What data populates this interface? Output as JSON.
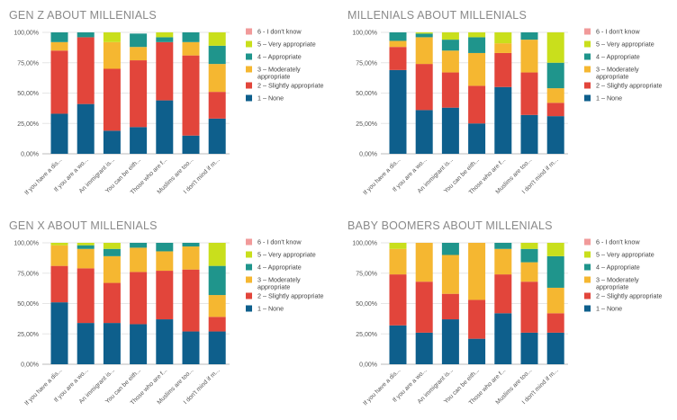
{
  "colors": {
    "1 – None": "#0e5f8c",
    "2 – Slightly appropriate": "#e2453b",
    "3 – Moderately appropriate": "#f5b731",
    "4 – Appropriate": "#1f958c",
    "5 – Very appropriate": "#c9df1c",
    "6 - I don't know": "#f19a9a"
  },
  "legend": [
    "6 - I don't know",
    "5 – Very appropriate",
    "4 – Appropriate",
    "3 – Moderately appropriate",
    "2 – Slightly appropriate",
    "1 – None"
  ],
  "chart_data": [
    {
      "type": "bar",
      "stacked": true,
      "title": "GEN Z ABOUT MILLENIALS",
      "categories": [
        "If you have a dis...",
        "If you are a wo...",
        "An immigrant is...",
        "You can be eith...",
        "Those who are f...",
        "Muslims are too...",
        "I don't mind if m..."
      ],
      "yticks": [
        "0,00%",
        "25,00%",
        "50,00%",
        "75,00%",
        "100,00%"
      ],
      "ylim": [
        0,
        100
      ],
      "series": [
        {
          "name": "1 – None",
          "values": [
            33,
            41,
            19,
            22,
            44,
            15,
            29
          ]
        },
        {
          "name": "2 – Slightly appropriate",
          "values": [
            52,
            55,
            51,
            55,
            48,
            66,
            22
          ]
        },
        {
          "name": "3 – Moderately appropriate",
          "values": [
            7,
            0,
            22,
            11,
            0,
            11,
            23
          ]
        },
        {
          "name": "4 – Appropriate",
          "values": [
            8,
            4,
            0,
            11,
            4,
            8,
            15
          ]
        },
        {
          "name": "5 – Very appropriate",
          "values": [
            0,
            0,
            8,
            0,
            4,
            0,
            11
          ]
        },
        {
          "name": "6 - I don't know",
          "values": [
            0,
            0,
            0,
            0,
            0,
            0,
            0
          ]
        }
      ]
    },
    {
      "type": "bar",
      "stacked": true,
      "title": "MILLENIALS ABOUT MILLENIALS",
      "categories": [
        "If you have a dis...",
        "If you are a wo...",
        "An immigrant is...",
        "You can be eith...",
        "Those who are f...",
        "Muslims are too...",
        "I don't mind if m..."
      ],
      "yticks": [
        "0,00%",
        "25,00%",
        "50,00%",
        "75,00%",
        "100,00%"
      ],
      "ylim": [
        0,
        100
      ],
      "series": [
        {
          "name": "1 – None",
          "values": [
            69,
            36,
            38,
            25,
            55,
            32,
            31
          ]
        },
        {
          "name": "2 – Slightly appropriate",
          "values": [
            19,
            38,
            29,
            31,
            28,
            35,
            11
          ]
        },
        {
          "name": "3 – Moderately appropriate",
          "values": [
            5,
            22,
            18,
            27,
            8,
            27,
            12
          ]
        },
        {
          "name": "4 – Appropriate",
          "values": [
            7,
            3,
            9,
            13,
            0,
            6,
            21
          ]
        },
        {
          "name": "5 – Very appropriate",
          "values": [
            0,
            1,
            6,
            4,
            9,
            0,
            25
          ]
        },
        {
          "name": "6 - I don't know",
          "values": [
            0,
            0,
            0,
            0,
            0,
            0,
            0
          ]
        }
      ]
    },
    {
      "type": "bar",
      "stacked": true,
      "title": "GEN X ABOUT MILLENIALS",
      "categories": [
        "If you have a dis...",
        "If you are a wo...",
        "An immigrant is...",
        "You can be eith...",
        "Those who are f...",
        "Muslims are too...",
        "I don't mind if m..."
      ],
      "yticks": [
        "0,00%",
        "25,00%",
        "50,00%",
        "75,00%",
        "100,00%"
      ],
      "ylim": [
        0,
        100
      ],
      "series": [
        {
          "name": "1 – None",
          "values": [
            51,
            34,
            34,
            33,
            37,
            27,
            27
          ]
        },
        {
          "name": "2 – Slightly appropriate",
          "values": [
            30,
            45,
            33,
            43,
            40,
            51,
            12
          ]
        },
        {
          "name": "3 – Moderately appropriate",
          "values": [
            17,
            16,
            22,
            20,
            16,
            19,
            18
          ]
        },
        {
          "name": "4 – Appropriate",
          "values": [
            0,
            3,
            6,
            4,
            7,
            3,
            24
          ]
        },
        {
          "name": "5 – Very appropriate",
          "values": [
            2,
            2,
            5,
            0,
            0,
            0,
            19
          ]
        },
        {
          "name": "6 - I don't know",
          "values": [
            0,
            0,
            0,
            0,
            0,
            0,
            0
          ]
        }
      ]
    },
    {
      "type": "bar",
      "stacked": true,
      "title": "BABY BOOMERS ABOUT MILLENIALS",
      "categories": [
        "If you have a dis...",
        "If you are a wo...",
        "An immigrant is...",
        "You can be eith...",
        "Those who are f...",
        "Muslims are too...",
        "I don't mind if m..."
      ],
      "yticks": [
        "0,00%",
        "25,00%",
        "50,00%",
        "75,00%",
        "100,00%"
      ],
      "ylim": [
        0,
        100
      ],
      "series": [
        {
          "name": "1 – None",
          "values": [
            32,
            26,
            37,
            21,
            42,
            26,
            26
          ]
        },
        {
          "name": "2 – Slightly appropriate",
          "values": [
            42,
            42,
            21,
            32,
            32,
            42,
            16
          ]
        },
        {
          "name": "3 – Moderately appropriate",
          "values": [
            21,
            32,
            32,
            47,
            21,
            16,
            21
          ]
        },
        {
          "name": "4 – Appropriate",
          "values": [
            0,
            0,
            10,
            0,
            5,
            11,
            26
          ]
        },
        {
          "name": "5 – Very appropriate",
          "values": [
            5,
            0,
            0,
            0,
            0,
            5,
            11
          ]
        },
        {
          "name": "6 - I don't know",
          "values": [
            0,
            0,
            0,
            0,
            0,
            0,
            0
          ]
        }
      ]
    }
  ]
}
